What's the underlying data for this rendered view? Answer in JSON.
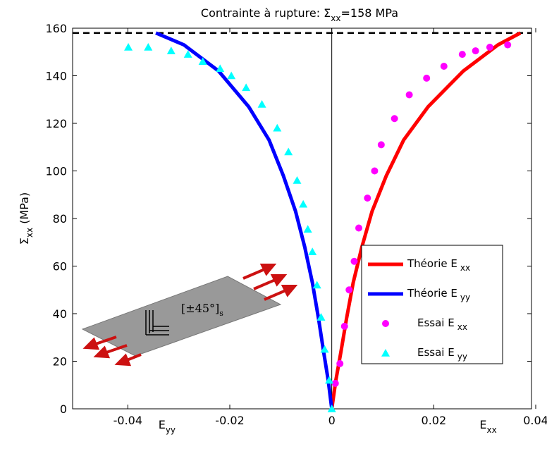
{
  "chart_data": {
    "type": "line",
    "title": [
      "Contrainte à rupture: Σ",
      "xx",
      "=158 MPa"
    ],
    "ylabel": [
      "Σ",
      "xx",
      " (MPa)"
    ],
    "xlabels": [
      {
        "text": "E",
        "sub": "yy",
        "at": -0.034
      },
      {
        "text": "E",
        "sub": "xx",
        "at": 0.029
      }
    ],
    "xlim": [
      -0.05,
      0.04
    ],
    "ylim": [
      0,
      160
    ],
    "xticks": [
      -0.04,
      -0.02,
      0,
      0.02,
      0.04
    ],
    "yticks": [
      0,
      20,
      40,
      60,
      80,
      100,
      120,
      140,
      160
    ],
    "vline": 0,
    "hline": 158,
    "annotation": [
      "[±45°]",
      "s"
    ],
    "series": [
      {
        "name": "Théorie E",
        "sub": "xx",
        "color": "#ff0000",
        "style": "line",
        "x": [
          0,
          0.0008,
          0.0018,
          0.0029,
          0.0042,
          0.0059,
          0.0079,
          0.0107,
          0.0141,
          0.0189,
          0.0258,
          0.0326,
          0.037
        ],
        "values": [
          0,
          12,
          24,
          38,
          53,
          68,
          83,
          98,
          113,
          127,
          142,
          153,
          158
        ]
      },
      {
        "name": "Théorie E",
        "sub": "yy",
        "color": "#0000ff",
        "style": "line",
        "x": [
          0,
          -0.0007,
          -0.0016,
          -0.0026,
          -0.0038,
          -0.0053,
          -0.0071,
          -0.0095,
          -0.0123,
          -0.0163,
          -0.0222,
          -0.029,
          -0.0345
        ],
        "values": [
          0,
          12,
          24,
          38,
          53,
          68,
          83,
          98,
          113,
          127,
          142,
          153,
          158
        ]
      },
      {
        "name": "Essai E",
        "sub": "xx",
        "color": "#ff00ff",
        "style": "circle",
        "x": [
          0.0007,
          0.0016,
          0.0025,
          0.0034,
          0.0044,
          0.0053,
          0.007,
          0.0084,
          0.0097,
          0.0123,
          0.0152,
          0.0186,
          0.022,
          0.0256,
          0.0282,
          0.031,
          0.0345
        ],
        "values": [
          10.7,
          19,
          34.7,
          50,
          62,
          76,
          88.6,
          100,
          111,
          122,
          132,
          139,
          144,
          149,
          150.5,
          152,
          153
        ]
      },
      {
        "name": "Essai E",
        "sub": "yy",
        "color": "#00ffff",
        "style": "triangle",
        "x": [
          0,
          -0.0005,
          -0.0014,
          -0.0021,
          -0.0029,
          -0.0038,
          -0.0047,
          -0.0056,
          -0.0068,
          -0.0085,
          -0.0107,
          -0.0137,
          -0.0168,
          -0.0197,
          -0.0219,
          -0.0253,
          -0.0282,
          -0.0315,
          -0.036,
          -0.0399
        ],
        "values": [
          0,
          12,
          25,
          38.5,
          52,
          66,
          75.5,
          86,
          96,
          108,
          118,
          128,
          135,
          140,
          143,
          146,
          149,
          150.5,
          152,
          152
        ]
      }
    ]
  }
}
